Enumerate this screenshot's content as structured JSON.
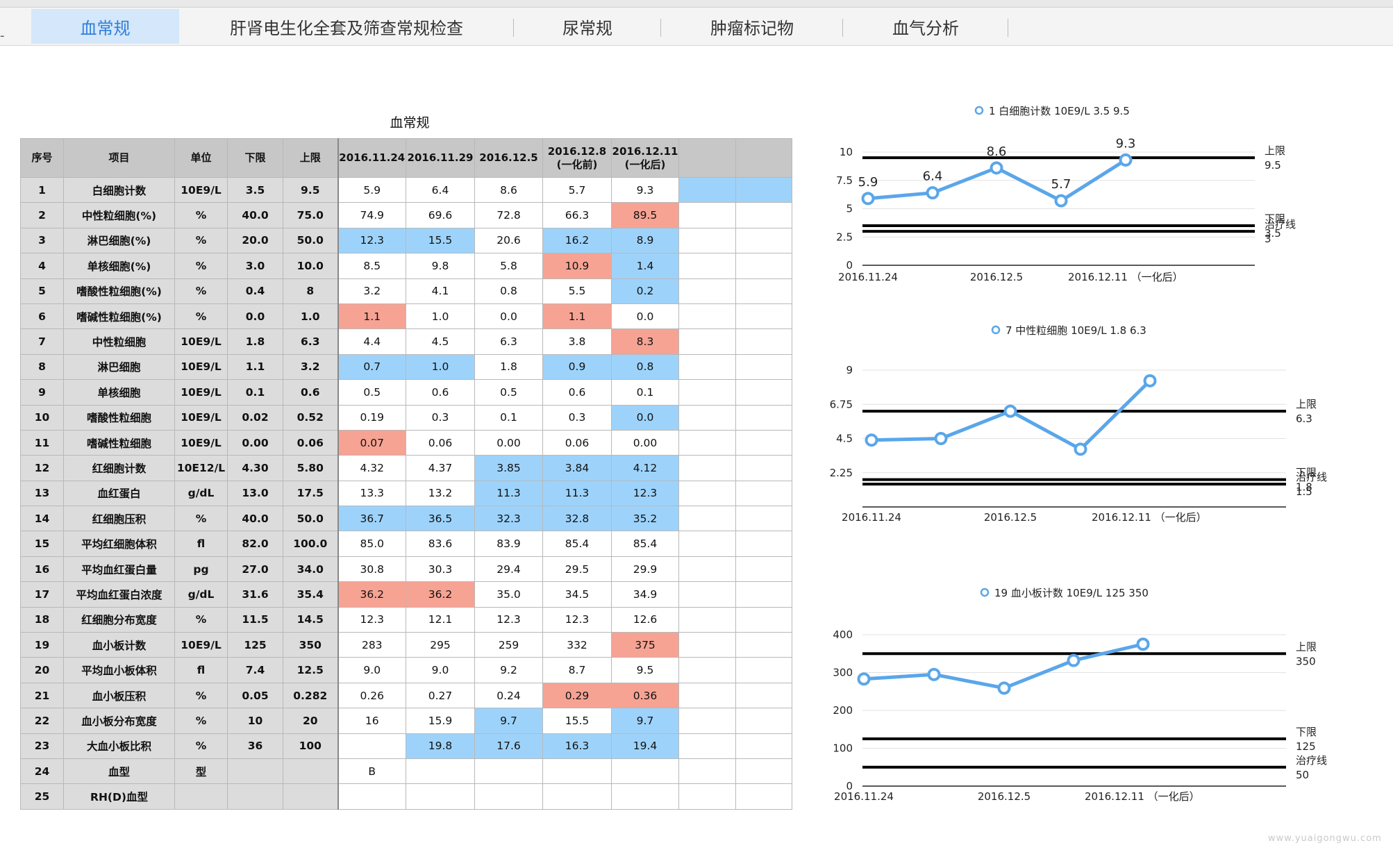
{
  "tabs": [
    {
      "label": "血常规",
      "active": true
    },
    {
      "label": "肝肾电生化全套及筛查常规检查",
      "active": false
    },
    {
      "label": "尿常规",
      "active": false
    },
    {
      "label": "肿瘤标记物",
      "active": false
    },
    {
      "label": "血气分析",
      "active": false
    }
  ],
  "tab_mark": "-",
  "table": {
    "title": "血常规",
    "headers": [
      "序号",
      "项目",
      "单位",
      "下限",
      "上限",
      "2016.11.24",
      "2016.11.29",
      "2016.12.5",
      "2016.12.8\n(一化前)",
      "2016.12.11\n(一化后)",
      "",
      ""
    ],
    "rows": [
      {
        "cells": [
          "1",
          "白细胞计数",
          "10E9/L",
          "3.5",
          "9.5",
          "5.9",
          "6.4",
          "8.6",
          "5.7",
          "9.3",
          "",
          ""
        ],
        "hl": {
          "10": "blue",
          "11": "blue"
        }
      },
      {
        "cells": [
          "2",
          "中性粒细胞(%)",
          "%",
          "40.0",
          "75.0",
          "74.9",
          "69.6",
          "72.8",
          "66.3",
          "89.5",
          "",
          ""
        ],
        "hl": {
          "9": "red"
        }
      },
      {
        "cells": [
          "3",
          "淋巴细胞(%)",
          "%",
          "20.0",
          "50.0",
          "12.3",
          "15.5",
          "20.6",
          "16.2",
          "8.9",
          "",
          ""
        ],
        "hl": {
          "5": "blue",
          "6": "blue",
          "8": "blue",
          "9": "blue"
        }
      },
      {
        "cells": [
          "4",
          "单核细胞(%)",
          "%",
          "3.0",
          "10.0",
          "8.5",
          "9.8",
          "5.8",
          "10.9",
          "1.4",
          "",
          ""
        ],
        "hl": {
          "8": "red",
          "9": "blue"
        }
      },
      {
        "cells": [
          "5",
          "嗜酸性粒细胞(%)",
          "%",
          "0.4",
          "8",
          "3.2",
          "4.1",
          "0.8",
          "5.5",
          "0.2",
          "",
          ""
        ],
        "hl": {
          "9": "blue"
        }
      },
      {
        "cells": [
          "6",
          "嗜碱性粒细胞(%)",
          "%",
          "0.0",
          "1.0",
          "1.1",
          "1.0",
          "0.0",
          "1.1",
          "0.0",
          "",
          ""
        ],
        "hl": {
          "5": "red",
          "8": "red"
        }
      },
      {
        "cells": [
          "7",
          "中性粒细胞",
          "10E9/L",
          "1.8",
          "6.3",
          "4.4",
          "4.5",
          "6.3",
          "3.8",
          "8.3",
          "",
          ""
        ],
        "hl": {
          "9": "red"
        }
      },
      {
        "cells": [
          "8",
          "淋巴细胞",
          "10E9/L",
          "1.1",
          "3.2",
          "0.7",
          "1.0",
          "1.8",
          "0.9",
          "0.8",
          "",
          ""
        ],
        "hl": {
          "5": "blue",
          "6": "blue",
          "8": "blue",
          "9": "blue"
        }
      },
      {
        "cells": [
          "9",
          "单核细胞",
          "10E9/L",
          "0.1",
          "0.6",
          "0.5",
          "0.6",
          "0.5",
          "0.6",
          "0.1",
          "",
          ""
        ],
        "hl": {}
      },
      {
        "cells": [
          "10",
          "嗜酸性粒细胞",
          "10E9/L",
          "0.02",
          "0.52",
          "0.19",
          "0.3",
          "0.1",
          "0.3",
          "0.0",
          "",
          ""
        ],
        "hl": {
          "9": "blue"
        }
      },
      {
        "cells": [
          "11",
          "嗜碱性粒细胞",
          "10E9/L",
          "0.00",
          "0.06",
          "0.07",
          "0.06",
          "0.00",
          "0.06",
          "0.00",
          "",
          ""
        ],
        "hl": {
          "5": "red"
        }
      },
      {
        "cells": [
          "12",
          "红细胞计数",
          "10E12/L",
          "4.30",
          "5.80",
          "4.32",
          "4.37",
          "3.85",
          "3.84",
          "4.12",
          "",
          ""
        ],
        "hl": {
          "7": "blue",
          "8": "blue",
          "9": "blue"
        }
      },
      {
        "cells": [
          "13",
          "血红蛋白",
          "g/dL",
          "13.0",
          "17.5",
          "13.3",
          "13.2",
          "11.3",
          "11.3",
          "12.3",
          "",
          ""
        ],
        "hl": {
          "7": "blue",
          "8": "blue",
          "9": "blue"
        }
      },
      {
        "cells": [
          "14",
          "红细胞压积",
          "%",
          "40.0",
          "50.0",
          "36.7",
          "36.5",
          "32.3",
          "32.8",
          "35.2",
          "",
          ""
        ],
        "hl": {
          "5": "blue",
          "6": "blue",
          "7": "blue",
          "8": "blue",
          "9": "blue"
        }
      },
      {
        "cells": [
          "15",
          "平均红细胞体积",
          "fl",
          "82.0",
          "100.0",
          "85.0",
          "83.6",
          "83.9",
          "85.4",
          "85.4",
          "",
          ""
        ],
        "hl": {}
      },
      {
        "cells": [
          "16",
          "平均血红蛋白量",
          "pg",
          "27.0",
          "34.0",
          "30.8",
          "30.3",
          "29.4",
          "29.5",
          "29.9",
          "",
          ""
        ],
        "hl": {}
      },
      {
        "cells": [
          "17",
          "平均血红蛋白浓度",
          "g/dL",
          "31.6",
          "35.4",
          "36.2",
          "36.2",
          "35.0",
          "34.5",
          "34.9",
          "",
          ""
        ],
        "hl": {
          "5": "red",
          "6": "red"
        }
      },
      {
        "cells": [
          "18",
          "红细胞分布宽度",
          "%",
          "11.5",
          "14.5",
          "12.3",
          "12.1",
          "12.3",
          "12.3",
          "12.6",
          "",
          ""
        ],
        "hl": {}
      },
      {
        "cells": [
          "19",
          "血小板计数",
          "10E9/L",
          "125",
          "350",
          "283",
          "295",
          "259",
          "332",
          "375",
          "",
          ""
        ],
        "hl": {
          "9": "red"
        }
      },
      {
        "cells": [
          "20",
          "平均血小板体积",
          "fl",
          "7.4",
          "12.5",
          "9.0",
          "9.0",
          "9.2",
          "8.7",
          "9.5",
          "",
          ""
        ],
        "hl": {}
      },
      {
        "cells": [
          "21",
          "血小板压积",
          "%",
          "0.05",
          "0.282",
          "0.26",
          "0.27",
          "0.24",
          "0.29",
          "0.36",
          "",
          ""
        ],
        "hl": {
          "8": "red",
          "9": "red"
        }
      },
      {
        "cells": [
          "22",
          "血小板分布宽度",
          "%",
          "10",
          "20",
          "16",
          "15.9",
          "9.7",
          "15.5",
          "9.7",
          "",
          ""
        ],
        "hl": {
          "7": "blue",
          "9": "blue"
        }
      },
      {
        "cells": [
          "23",
          "大血小板比积",
          "%",
          "36",
          "100",
          "",
          "19.8",
          "17.6",
          "16.3",
          "19.4",
          "",
          ""
        ],
        "hl": {
          "6": "blue",
          "7": "blue",
          "8": "blue",
          "9": "blue"
        }
      },
      {
        "cells": [
          "24",
          "血型",
          "型",
          "",
          "",
          "B",
          "",
          "",
          "",
          "",
          "",
          ""
        ],
        "hl": {}
      },
      {
        "cells": [
          "25",
          "RH(D)血型",
          "",
          "",
          "",
          "",
          "",
          "",
          "",
          "",
          "",
          ""
        ],
        "hl": {}
      }
    ]
  },
  "colors": {
    "blue": "#9dd3fb",
    "red": "#f6a394",
    "series": "#5aa6ea",
    "header": "#c7c7c7",
    "label_col": "#dcdcdc"
  },
  "chart_data": [
    {
      "type": "line",
      "legend": "1 白细胞计数 10E9/L 3.5 9.5",
      "x": [
        "2016.11.24",
        "2016.11.29",
        "2016.12.5",
        "2016.12.8\n(一化前)",
        "2016.12.11\n(一化后)"
      ],
      "x_tick_labels": [
        "2016.11.24",
        "2016.12.5",
        "2016.12.11 （一化后）"
      ],
      "series": [
        {
          "values": [
            5.9,
            6.4,
            8.6,
            5.7,
            9.3
          ]
        }
      ],
      "data_labels": [
        "5.9",
        "6.4",
        "8.6",
        "5.7",
        "9.3"
      ],
      "ylim": [
        0,
        10
      ],
      "yticks": [
        "0",
        "2.5",
        "5",
        "7.5",
        "10"
      ],
      "ref_lines": [
        {
          "label": "上限",
          "value_label": "9.5",
          "value": 9.5
        },
        {
          "label": "下限",
          "value_label": "3.5",
          "value": 3.5
        },
        {
          "label": "治疗线",
          "value_label": "3",
          "value": 3
        }
      ]
    },
    {
      "type": "line",
      "legend": "7 中性粒细胞 10E9/L 1.8 6.3",
      "x": [
        "2016.11.24",
        "2016.11.29",
        "2016.12.5",
        "2016.12.8\n(一化前)",
        "2016.12.11\n(一化后)"
      ],
      "x_tick_labels": [
        "2016.11.24",
        "2016.12.5",
        "2016.12.11 （一化后）"
      ],
      "series": [
        {
          "values": [
            4.4,
            4.5,
            6.3,
            3.8,
            8.3
          ]
        }
      ],
      "data_labels": [],
      "ylim": [
        0,
        9
      ],
      "yticks": [
        "2.25",
        "4.5",
        "6.75",
        "9"
      ],
      "ref_lines": [
        {
          "label": "上限",
          "value_label": "6.3",
          "value": 6.3
        },
        {
          "label": "下限",
          "value_label": "1.8",
          "value": 1.8
        },
        {
          "label": "治疗线",
          "value_label": "1.5",
          "value": 1.5
        }
      ]
    },
    {
      "type": "line",
      "legend": "19 血小板计数 10E9/L 125 350",
      "x": [
        "2016.11.24",
        "2016.11.29",
        "2016.12.5",
        "2016.12.8\n(一化前)",
        "2016.12.11\n(一化后)"
      ],
      "x_tick_labels": [
        "2016.11.24",
        "2016.12.5",
        "2016.12.11 （一化后）"
      ],
      "series": [
        {
          "values": [
            283,
            295,
            259,
            332,
            375
          ]
        }
      ],
      "data_labels": [],
      "ylim": [
        0,
        400
      ],
      "yticks": [
        "0",
        "100",
        "200",
        "300",
        "400"
      ],
      "ref_lines": [
        {
          "label": "上限",
          "value_label": "350",
          "value": 350
        },
        {
          "label": "下限",
          "value_label": "125",
          "value": 125
        },
        {
          "label": "治疗线",
          "value_label": "50",
          "value": 50
        }
      ]
    }
  ],
  "watermark": "www.yuaigongwu.com"
}
